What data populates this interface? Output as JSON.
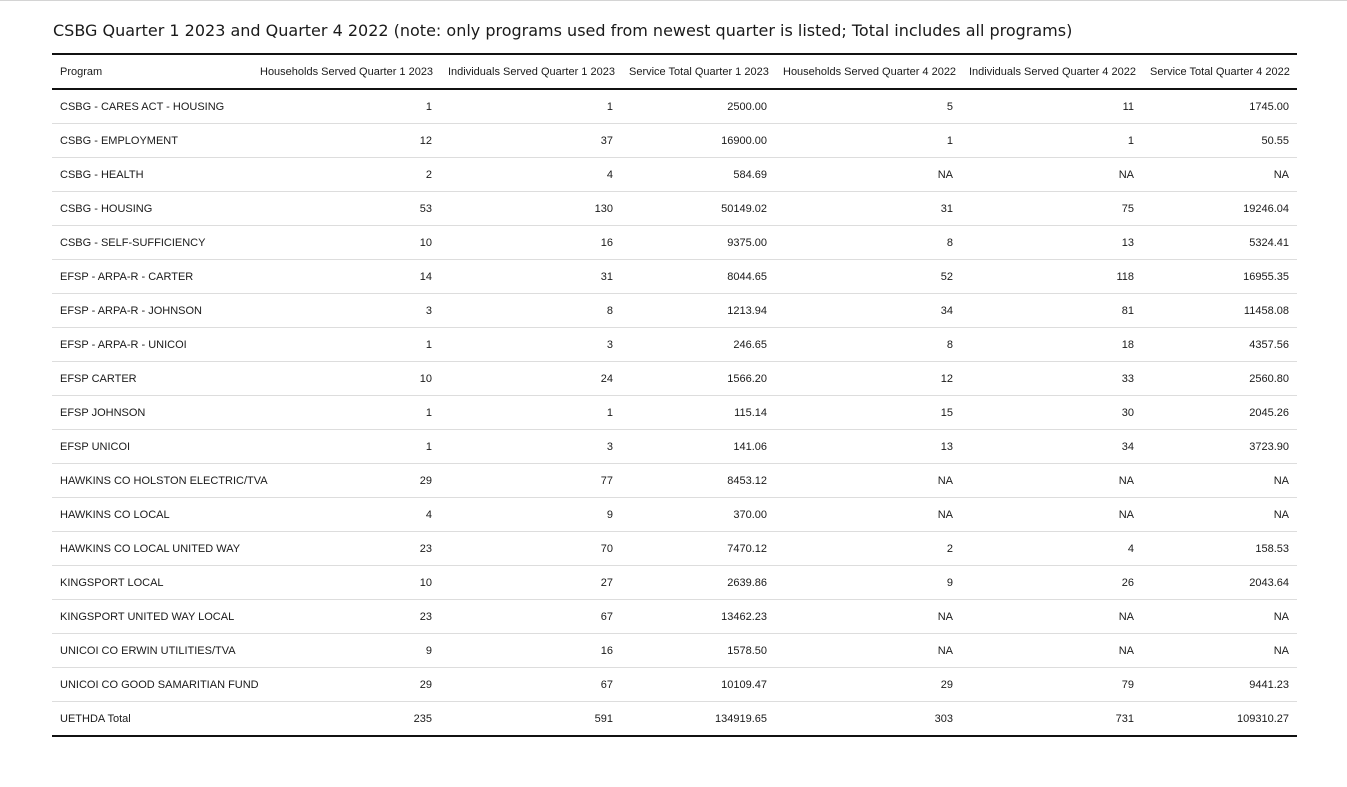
{
  "title": "CSBG Quarter 1 2023 and Quarter 4 2022 (note: only programs used from newest quarter is listed; Total includes all programs)",
  "table": {
    "columns": [
      "Program",
      "Households Served Quarter 1 2023",
      "Individuals Served Quarter 1 2023",
      "Service Total Quarter 1 2023",
      "Households Served Quarter 4 2022",
      "Individuals Served Quarter 4 2022",
      "Service Total Quarter 4 2022"
    ],
    "rows": [
      [
        "CSBG - CARES ACT - HOUSING",
        "1",
        "1",
        "2500.00",
        "5",
        "11",
        "1745.00"
      ],
      [
        "CSBG - EMPLOYMENT",
        "12",
        "37",
        "16900.00",
        "1",
        "1",
        "50.55"
      ],
      [
        "CSBG - HEALTH",
        "2",
        "4",
        "584.69",
        "NA",
        "NA",
        "NA"
      ],
      [
        "CSBG - HOUSING",
        "53",
        "130",
        "50149.02",
        "31",
        "75",
        "19246.04"
      ],
      [
        "CSBG - SELF-SUFFICIENCY",
        "10",
        "16",
        "9375.00",
        "8",
        "13",
        "5324.41"
      ],
      [
        "EFSP - ARPA-R - CARTER",
        "14",
        "31",
        "8044.65",
        "52",
        "118",
        "16955.35"
      ],
      [
        "EFSP - ARPA-R - JOHNSON",
        "3",
        "8",
        "1213.94",
        "34",
        "81",
        "11458.08"
      ],
      [
        "EFSP - ARPA-R - UNICOI",
        "1",
        "3",
        "246.65",
        "8",
        "18",
        "4357.56"
      ],
      [
        "EFSP CARTER",
        "10",
        "24",
        "1566.20",
        "12",
        "33",
        "2560.80"
      ],
      [
        "EFSP JOHNSON",
        "1",
        "1",
        "115.14",
        "15",
        "30",
        "2045.26"
      ],
      [
        "EFSP UNICOI",
        "1",
        "3",
        "141.06",
        "13",
        "34",
        "3723.90"
      ],
      [
        "HAWKINS CO HOLSTON ELECTRIC/TVA",
        "29",
        "77",
        "8453.12",
        "NA",
        "NA",
        "NA"
      ],
      [
        "HAWKINS CO LOCAL",
        "4",
        "9",
        "370.00",
        "NA",
        "NA",
        "NA"
      ],
      [
        "HAWKINS CO LOCAL UNITED WAY",
        "23",
        "70",
        "7470.12",
        "2",
        "4",
        "158.53"
      ],
      [
        "KINGSPORT LOCAL",
        "10",
        "27",
        "2639.86",
        "9",
        "26",
        "2043.64"
      ],
      [
        "KINGSPORT UNITED WAY LOCAL",
        "23",
        "67",
        "13462.23",
        "NA",
        "NA",
        "NA"
      ],
      [
        "UNICOI CO ERWIN UTILITIES/TVA",
        "9",
        "16",
        "1578.50",
        "NA",
        "NA",
        "NA"
      ],
      [
        "UNICOI CO GOOD SAMARITIAN FUND",
        "29",
        "67",
        "10109.47",
        "29",
        "79",
        "9441.23"
      ],
      [
        "UETHDA Total",
        "235",
        "591",
        "134919.65",
        "303",
        "731",
        "109310.27"
      ]
    ]
  }
}
